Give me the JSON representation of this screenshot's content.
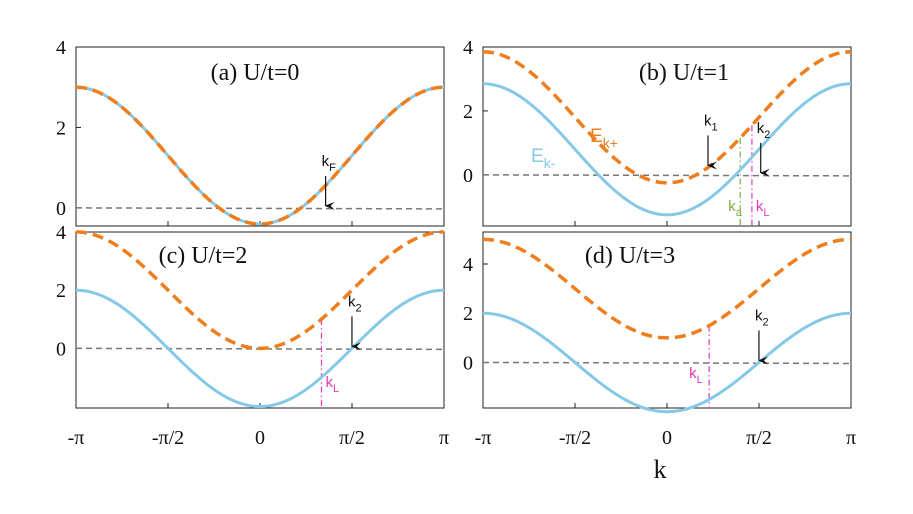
{
  "colors": {
    "lower_band": "#86c9e6",
    "upper_band": "#ef7e1e",
    "zero_line": "#777777",
    "pink": "#e23ab6",
    "green": "#7fae3f",
    "arrow": "#111111"
  },
  "xlabel": "k",
  "x_ticks": [
    "-π",
    "-π/2",
    "0",
    "π/2",
    "π"
  ],
  "chart_data": [
    {
      "type": "line",
      "title": "(a) U/t=0",
      "xlim": [
        -3.14159,
        3.14159
      ],
      "ylim": [
        -0.45,
        4
      ],
      "y_ticks": [
        0,
        2,
        4
      ],
      "y_tick_labels": [
        "0",
        "2",
        "4"
      ],
      "series": [
        {
          "role": "lower",
          "formula": "-2cos(k)+sqrt(U^2/4+4) - ...",
          "U": 0
        },
        {
          "role": "upper",
          "U": 0
        }
      ],
      "annotations": [
        {
          "text": "k",
          "sub": "F",
          "k": 1.12,
          "color": "arrow"
        }
      ]
    },
    {
      "type": "line",
      "title": "(b) U/t=1",
      "xlim": [
        -3.14159,
        3.14159
      ],
      "ylim": [
        -1.6,
        4
      ],
      "y_ticks": [
        0,
        2,
        4
      ],
      "y_tick_labels": [
        "0",
        "2",
        "4"
      ],
      "series": [
        {
          "role": "lower",
          "name": "E",
          "sub": "k-",
          "U": 1
        },
        {
          "role": "upper",
          "name": "E",
          "sub": "k+",
          "U": 1
        }
      ],
      "annotations": [
        {
          "text": "k",
          "sub": "1",
          "k": 0.7,
          "color": "arrow"
        },
        {
          "text": "k",
          "sub": "2",
          "k": 1.6,
          "color": "arrow"
        },
        {
          "text": "k",
          "sub": "a",
          "k": 1.25,
          "color": "green"
        },
        {
          "text": "k",
          "sub": "L",
          "k": 1.45,
          "color": "pink"
        }
      ]
    },
    {
      "type": "line",
      "title": "(c) U/t=2",
      "xlim": [
        -3.14159,
        3.14159
      ],
      "ylim": [
        -2.05,
        4
      ],
      "y_ticks": [
        0,
        2,
        4
      ],
      "y_tick_labels": [
        "0",
        "2",
        "4"
      ],
      "series": [
        {
          "role": "lower",
          "U": 2
        },
        {
          "role": "upper",
          "U": 2
        }
      ],
      "annotations": [
        {
          "text": "k",
          "sub": "2",
          "k": 1.57,
          "color": "arrow"
        },
        {
          "text": "k",
          "sub": "L",
          "k": 1.05,
          "color": "pink"
        }
      ]
    },
    {
      "type": "line",
      "title": "(d) U/t=3",
      "xlim": [
        -3.14159,
        3.14159
      ],
      "ylim": [
        -1.85,
        5.3
      ],
      "y_ticks": [
        0,
        2,
        4
      ],
      "y_tick_labels": [
        "0",
        "2",
        "4"
      ],
      "series": [
        {
          "role": "lower",
          "U": 3
        },
        {
          "role": "upper",
          "U": 3
        }
      ],
      "annotations": [
        {
          "text": "k",
          "sub": "2",
          "k": 1.57,
          "color": "arrow"
        },
        {
          "text": "k",
          "sub": "L",
          "k": 0.72,
          "color": "pink"
        }
      ]
    }
  ]
}
